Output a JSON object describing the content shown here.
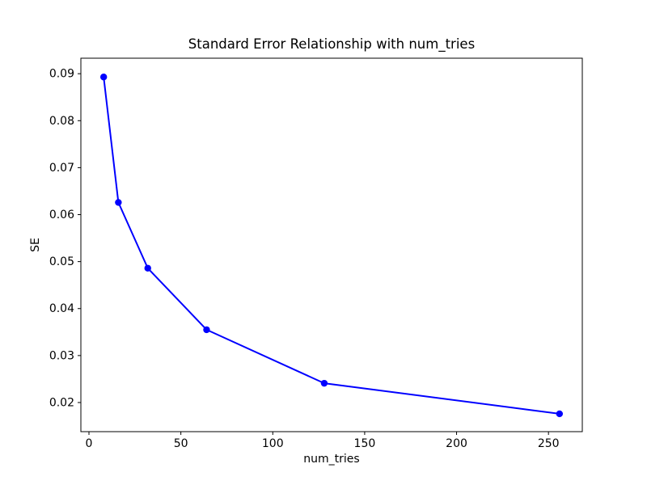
{
  "chart_data": {
    "type": "line",
    "title": "Standard Error Relationship with num_tries",
    "xlabel": "num_tries",
    "ylabel": "SE",
    "x": [
      8,
      16,
      32,
      64,
      128,
      256
    ],
    "series": [
      {
        "name": "SE",
        "values": [
          0.0893,
          0.0626,
          0.0486,
          0.0355,
          0.0241,
          0.0176
        ]
      }
    ],
    "xticks": [
      0,
      50,
      100,
      150,
      200,
      250
    ],
    "yticks": [
      0.02,
      0.03,
      0.04,
      0.05,
      0.06,
      0.07,
      0.08,
      0.09
    ],
    "xlim": [
      -4.4,
      268.4
    ],
    "ylim": [
      0.0138,
      0.0933
    ],
    "line_color": "#0000ff",
    "marker": "o",
    "grid": false,
    "background": "#ffffff"
  }
}
